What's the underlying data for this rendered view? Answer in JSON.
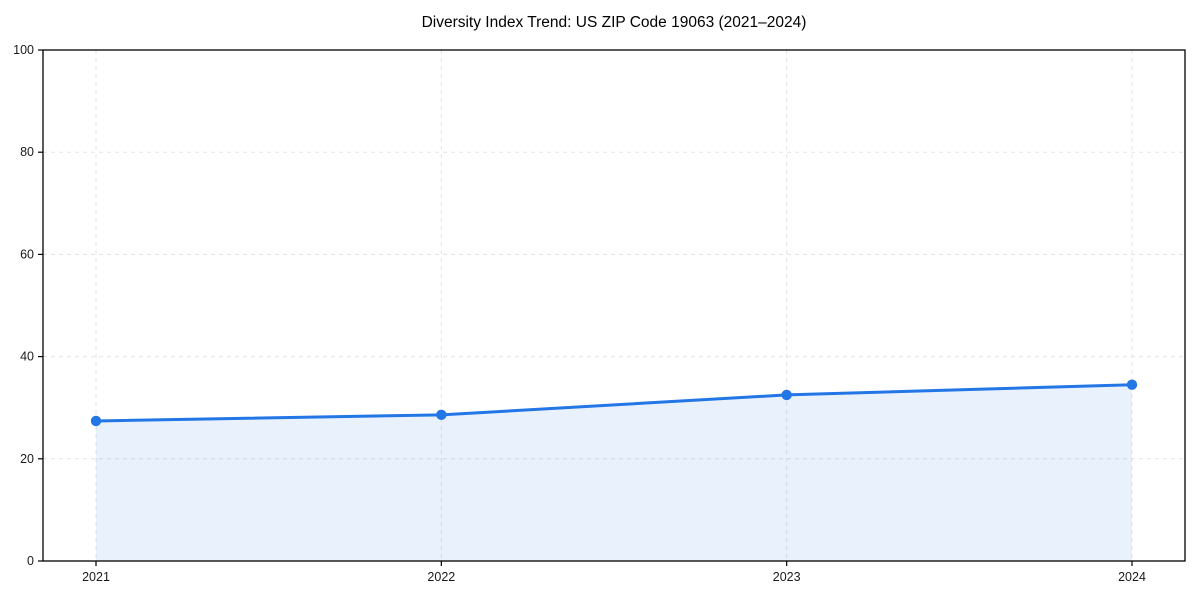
{
  "figure": {
    "title": "Diversity Index Trend: US ZIP Code 19063 (2021–2024)"
  },
  "chart_data": {
    "type": "area",
    "title": "Diversity Index Trend: US ZIP Code 19063 (2021–2024)",
    "categories": [
      "2021",
      "2022",
      "2023",
      "2024"
    ],
    "values": [
      27.4,
      28.6,
      32.5,
      34.5
    ],
    "series_name": "Diversity Index",
    "xlabel": "",
    "ylabel": "",
    "ylim": [
      0,
      100
    ],
    "yticks": [
      0,
      20,
      40,
      60,
      80,
      100
    ],
    "grid": true,
    "grid_style": "dashed",
    "legend": "none",
    "marker": "circle",
    "line_color": "#2376e6",
    "marker_color": "#2376e6",
    "fill_color": "#2376e6",
    "fill_opacity": 0.1,
    "grid_color": "#e3e3e3",
    "axis_color": "#000000",
    "tick_label_color": "#1a1a1a"
  }
}
